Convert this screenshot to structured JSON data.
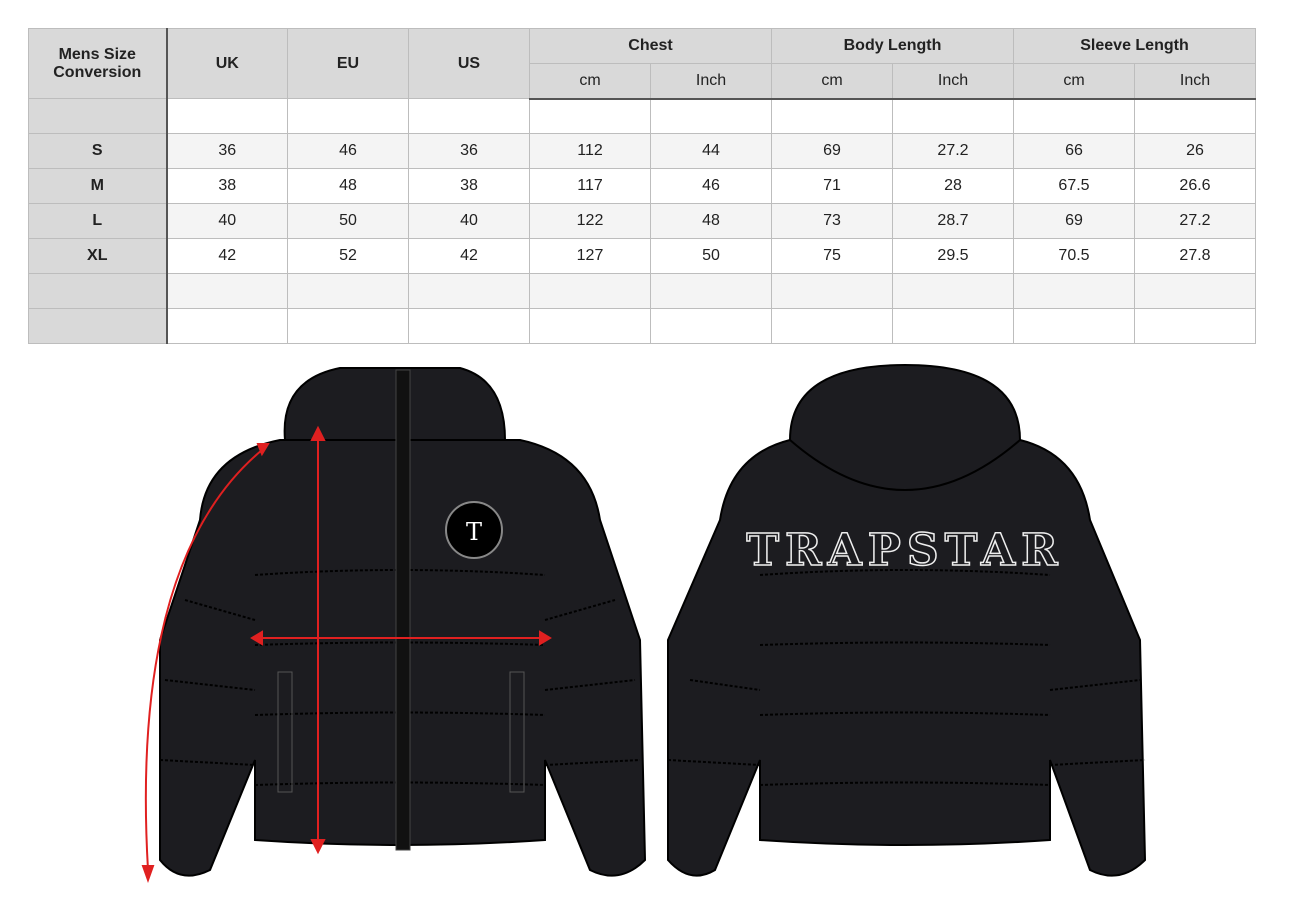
{
  "table": {
    "corner": "Mens Size Conversion",
    "columns": [
      "UK",
      "EU",
      "US"
    ],
    "groups": [
      {
        "label": "Chest",
        "subs": [
          "cm",
          "Inch"
        ]
      },
      {
        "label": "Body Length",
        "subs": [
          "cm",
          "Inch"
        ]
      },
      {
        "label": "Sleeve Length",
        "subs": [
          "cm",
          "Inch"
        ]
      }
    ],
    "rows": [
      {
        "size": "",
        "values": [
          "",
          "",
          "",
          "",
          "",
          "",
          "",
          "",
          ""
        ]
      },
      {
        "size": "S",
        "values": [
          "36",
          "46",
          "36",
          "112",
          "44",
          "69",
          "27.2",
          "66",
          "26"
        ]
      },
      {
        "size": "M",
        "values": [
          "38",
          "48",
          "38",
          "117",
          "46",
          "71",
          "28",
          "67.5",
          "26.6"
        ]
      },
      {
        "size": "L",
        "values": [
          "40",
          "50",
          "40",
          "122",
          "48",
          "73",
          "28.7",
          "69",
          "27.2"
        ]
      },
      {
        "size": "XL",
        "values": [
          "42",
          "52",
          "42",
          "127",
          "50",
          "75",
          "29.5",
          "70.5",
          "27.8"
        ]
      },
      {
        "size": "",
        "values": [
          "",
          "",
          "",
          "",
          "",
          "",
          "",
          "",
          ""
        ]
      },
      {
        "size": "",
        "values": [
          "",
          "",
          "",
          "",
          "",
          "",
          "",
          "",
          ""
        ]
      }
    ]
  },
  "illustration": {
    "jacket_color": "#1c1c20",
    "arrow_color": "#e02020"
  }
}
